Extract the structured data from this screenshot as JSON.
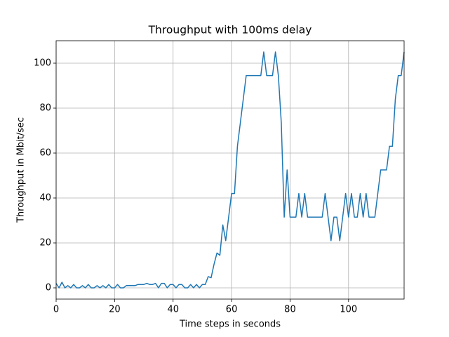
{
  "chart_data": {
    "type": "line",
    "title": "Throughput with 100ms delay",
    "xlabel": "Time steps in seconds",
    "ylabel": "Throughput in Mbit/sec",
    "x": [
      0,
      1,
      2,
      3,
      4,
      5,
      6,
      7,
      8,
      9,
      10,
      11,
      12,
      13,
      14,
      15,
      16,
      17,
      18,
      19,
      20,
      21,
      22,
      23,
      24,
      25,
      26,
      27,
      28,
      29,
      30,
      31,
      32,
      33,
      34,
      35,
      36,
      37,
      38,
      39,
      40,
      41,
      42,
      43,
      44,
      45,
      46,
      47,
      48,
      49,
      50,
      51,
      52,
      53,
      54,
      55,
      56,
      57,
      58,
      59,
      60,
      61,
      62,
      63,
      64,
      65,
      66,
      67,
      68,
      69,
      70,
      71,
      72,
      73,
      74,
      75,
      76,
      77,
      78,
      79,
      80,
      81,
      82,
      83,
      84,
      85,
      86,
      87,
      88,
      89,
      90,
      91,
      92,
      93,
      94,
      95,
      96,
      97,
      98,
      99,
      100,
      101,
      102,
      103,
      104,
      105,
      106,
      107,
      108,
      109,
      110,
      111,
      112,
      113,
      114,
      115,
      116,
      117,
      118,
      119
    ],
    "values": [
      2,
      0,
      2.5,
      0,
      1,
      0,
      1.5,
      0,
      0,
      1,
      0,
      1.5,
      0,
      0,
      1,
      0,
      1,
      0,
      1.5,
      0,
      0,
      1.5,
      0,
      0,
      1,
      1,
      1,
      1,
      1.5,
      1.5,
      1.5,
      2,
      1.5,
      1.5,
      2,
      0,
      2,
      2,
      0,
      1.5,
      1.5,
      0,
      1.5,
      1.5,
      0,
      0,
      1.5,
      0,
      1.5,
      0,
      1.5,
      1.5,
      5,
      4.5,
      10.5,
      15.5,
      14.5,
      28,
      21,
      31.5,
      42,
      42,
      63,
      73.5,
      84,
      94.5,
      94.5,
      94.5,
      94.5,
      94.5,
      94.5,
      105,
      94.5,
      94.5,
      94.5,
      105,
      94.5,
      73.5,
      31.5,
      52.5,
      31.5,
      31.5,
      31.5,
      42,
      31.5,
      42,
      31.5,
      31.5,
      31.5,
      31.5,
      31.5,
      31.5,
      42,
      31.5,
      21,
      31.5,
      31.5,
      21,
      31.5,
      42,
      31.5,
      42,
      31.5,
      31.5,
      42,
      31.5,
      42,
      31.5,
      31.5,
      31.5,
      42,
      52.5,
      52.5,
      52.5,
      63,
      63,
      84,
      94.5,
      94.5,
      105
    ],
    "color": "#1f77b4",
    "xlim": [
      0,
      119
    ],
    "xticks": [
      0,
      20,
      40,
      60,
      80,
      100
    ],
    "ylim": [
      -5,
      110
    ],
    "yticks": [
      0,
      20,
      40,
      60,
      80,
      100
    ],
    "grid": true
  }
}
